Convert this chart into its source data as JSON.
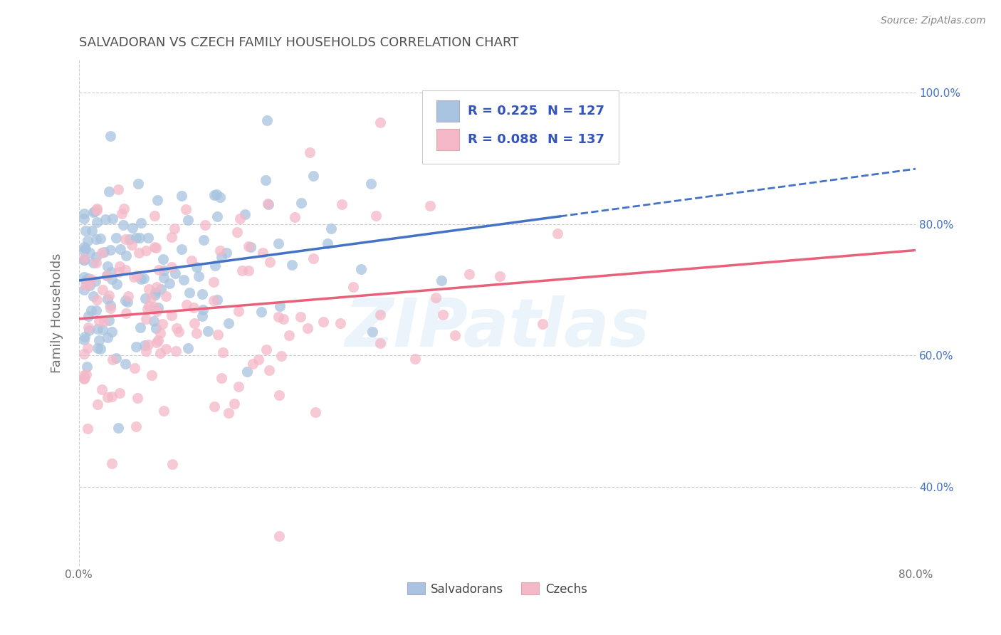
{
  "title": "SALVADORAN VS CZECH FAMILY HOUSEHOLDS CORRELATION CHART",
  "source": "Source: ZipAtlas.com",
  "ylabel": "Family Households",
  "xlim": [
    0.0,
    0.8
  ],
  "ylim": [
    0.28,
    1.05
  ],
  "ytick_labels": [
    "40.0%",
    "60.0%",
    "80.0%",
    "100.0%"
  ],
  "ytick_values": [
    0.4,
    0.6,
    0.8,
    1.0
  ],
  "R_salvadoran": 0.225,
  "N_salvadoran": 127,
  "R_czech": 0.088,
  "N_czech": 137,
  "salvadoran_color": "#a8c4e0",
  "czech_color": "#f4b8c8",
  "salvadoran_line_color": "#4472c4",
  "czech_line_color": "#e8607a",
  "watermark_text": "ZIPatlas",
  "background_color": "#ffffff",
  "grid_color": "#cccccc",
  "title_color": "#505050",
  "axis_label_color": "#707070",
  "legend_value_color": "#3355bb"
}
